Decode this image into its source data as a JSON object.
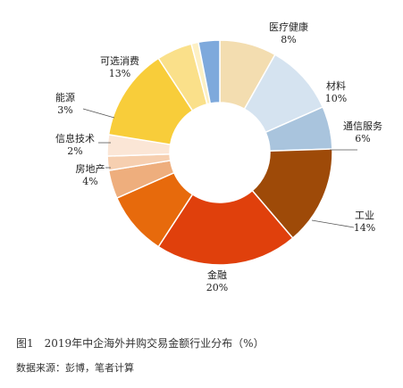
{
  "chart_data": {
    "type": "pie",
    "donut": true,
    "slices": [
      {
        "label": "医疗健康",
        "value": 8,
        "pct_label": "8%",
        "color": "#f3ddb0"
      },
      {
        "label": "材料",
        "value": 10,
        "pct_label": "10%",
        "color": "#d5e3f0"
      },
      {
        "label": "通信服务",
        "value": 6,
        "pct_label": "6%",
        "color": "#a9c4dd"
      },
      {
        "label": "工业",
        "value": 14,
        "pct_label": "14%",
        "color": "#9e4a08"
      },
      {
        "label": "金融",
        "value": 20,
        "pct_label": "20%",
        "color": "#e0400c"
      },
      {
        "label": "",
        "value": 9,
        "pct_label": "",
        "color": "#e76a0c"
      },
      {
        "label": "房地产",
        "value": 4,
        "pct_label": "4%",
        "color": "#eeae7d"
      },
      {
        "label": "信息技术",
        "value": 2,
        "pct_label": "2%",
        "color": "#f6cfb0"
      },
      {
        "label": "能源",
        "value": 3,
        "pct_label": "3%",
        "color": "#fbe6d6"
      },
      {
        "label": "可选消费",
        "value": 13,
        "pct_label": "13%",
        "color": "#f8cd3a"
      },
      {
        "label": "",
        "value": 5,
        "pct_label": "",
        "color": "#fae08a"
      },
      {
        "label": "",
        "value": 1,
        "pct_label": "",
        "color": "#fdf0c4"
      },
      {
        "label": "",
        "value": 3,
        "pct_label": "",
        "color": "#7ea9dc"
      }
    ]
  },
  "caption": "图1　2019年中企海外并购交易金额行业分布（%）",
  "source": "数据来源：彭博，笔者计算"
}
